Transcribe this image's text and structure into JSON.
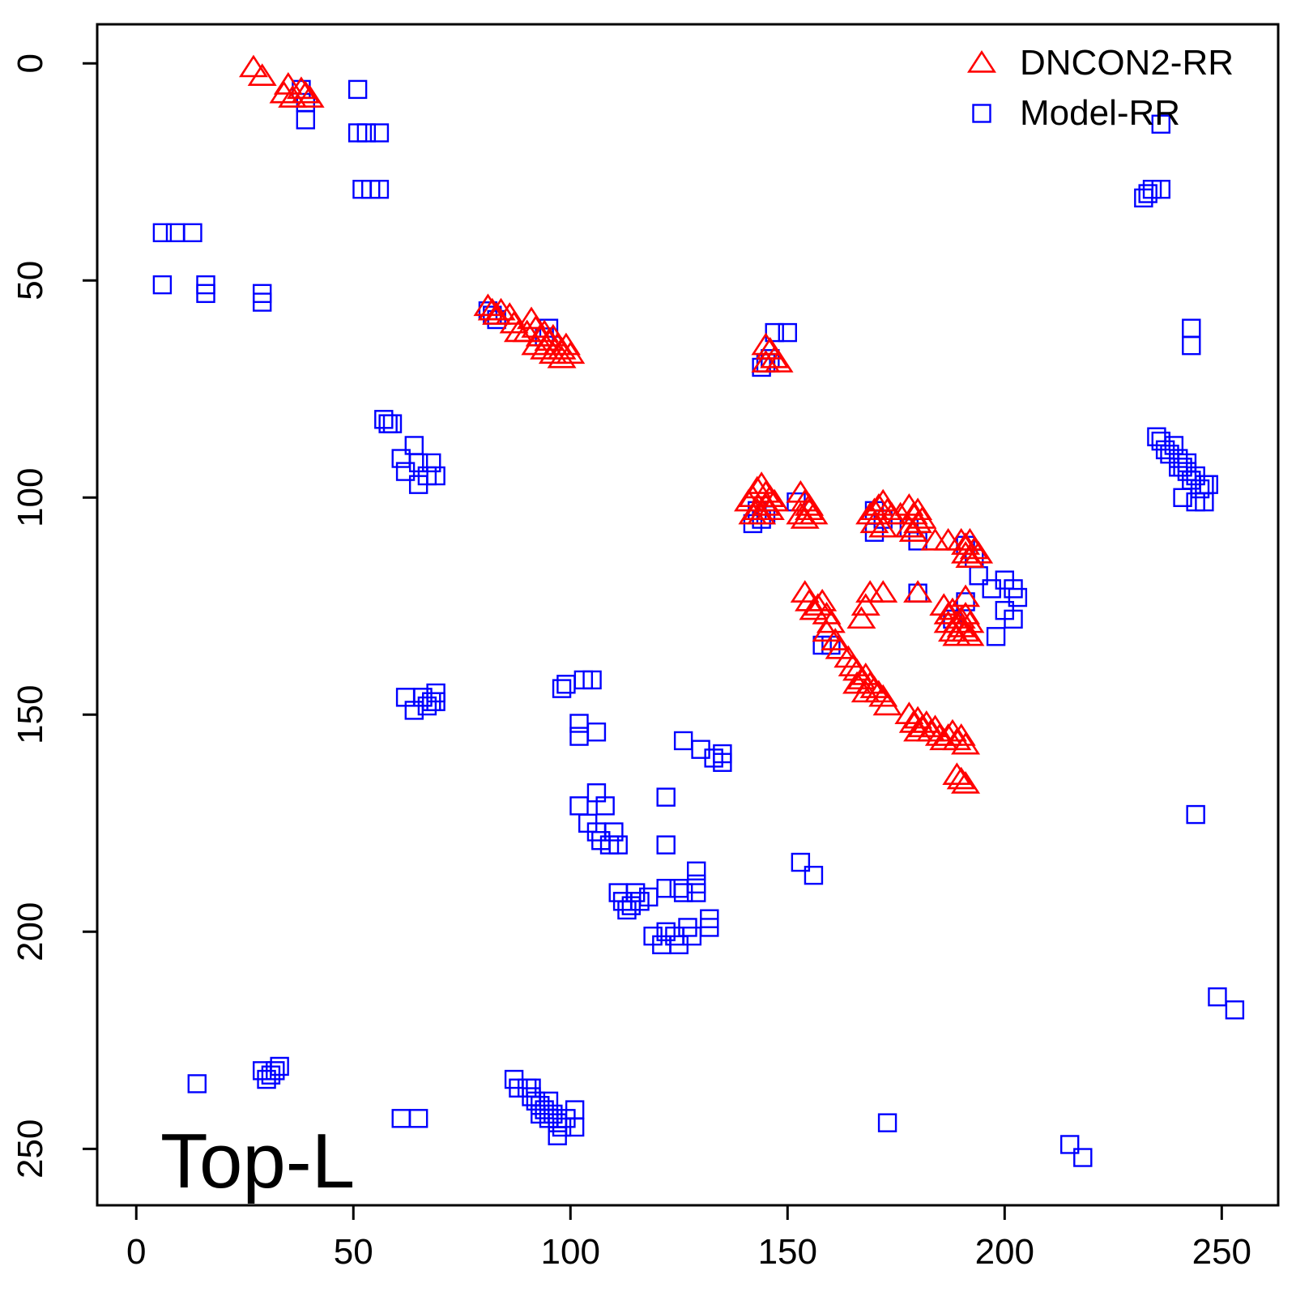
{
  "chart_data": {
    "type": "scatter",
    "title": "",
    "xlabel": "",
    "ylabel": "",
    "xlim": [
      -9,
      263
    ],
    "ylim": [
      263,
      -9
    ],
    "y_reversed": true,
    "grid": false,
    "legend_position": "top-right",
    "x_ticks": [
      0,
      50,
      100,
      150,
      200,
      250
    ],
    "y_ticks": [
      0,
      50,
      100,
      150,
      200,
      250
    ],
    "annotation": "Top-L",
    "series": [
      {
        "name": "DNCON2-RR",
        "marker": "triangle-open",
        "color": "#ff0000",
        "points": [
          [
            27,
            1
          ],
          [
            29,
            3
          ],
          [
            34,
            7
          ],
          [
            35,
            5
          ],
          [
            36,
            8
          ],
          [
            38,
            6
          ],
          [
            39,
            7
          ],
          [
            40,
            8
          ],
          [
            81,
            56
          ],
          [
            82,
            57
          ],
          [
            83,
            58
          ],
          [
            84,
            57
          ],
          [
            86,
            58
          ],
          [
            87,
            60
          ],
          [
            88,
            62
          ],
          [
            90,
            62
          ],
          [
            91,
            59
          ],
          [
            92,
            61
          ],
          [
            93,
            63
          ],
          [
            94,
            62
          ],
          [
            95,
            64
          ],
          [
            96,
            63
          ],
          [
            97,
            65
          ],
          [
            98,
            66
          ],
          [
            99,
            65
          ],
          [
            100,
            67
          ],
          [
            92,
            65
          ],
          [
            94,
            66
          ],
          [
            96,
            67
          ],
          [
            98,
            68
          ],
          [
            145,
            65
          ],
          [
            146,
            66
          ],
          [
            147,
            68
          ],
          [
            148,
            69
          ],
          [
            145,
            69
          ],
          [
            141,
            101
          ],
          [
            142,
            100
          ],
          [
            143,
            98
          ],
          [
            144,
            97
          ],
          [
            145,
            99
          ],
          [
            146,
            100
          ],
          [
            147,
            101
          ],
          [
            143,
            103
          ],
          [
            144,
            104
          ],
          [
            145,
            102
          ],
          [
            142,
            104
          ],
          [
            146,
            103
          ],
          [
            153,
            99
          ],
          [
            154,
            101
          ],
          [
            155,
            102
          ],
          [
            156,
            104
          ],
          [
            153,
            104
          ],
          [
            154,
            105
          ],
          [
            155,
            103
          ],
          [
            169,
            104
          ],
          [
            170,
            103
          ],
          [
            171,
            102
          ],
          [
            172,
            101
          ],
          [
            173,
            103
          ],
          [
            174,
            104
          ],
          [
            170,
            106
          ],
          [
            172,
            107
          ],
          [
            176,
            104
          ],
          [
            178,
            102
          ],
          [
            179,
            104
          ],
          [
            180,
            103
          ],
          [
            181,
            105
          ],
          [
            178,
            107
          ],
          [
            179,
            108
          ],
          [
            180,
            106
          ],
          [
            184,
            110
          ],
          [
            187,
            110
          ],
          [
            190,
            110
          ],
          [
            191,
            111
          ],
          [
            192,
            110
          ],
          [
            193,
            112
          ],
          [
            194,
            113
          ],
          [
            191,
            113
          ],
          [
            192,
            114
          ],
          [
            154,
            122
          ],
          [
            155,
            124
          ],
          [
            156,
            126
          ],
          [
            157,
            125
          ],
          [
            158,
            124
          ],
          [
            159,
            127
          ],
          [
            160,
            129
          ],
          [
            159,
            131
          ],
          [
            161,
            133
          ],
          [
            162,
            135
          ],
          [
            169,
            122
          ],
          [
            168,
            125
          ],
          [
            167,
            128
          ],
          [
            172,
            122
          ],
          [
            180,
            122
          ],
          [
            186,
            125
          ],
          [
            187,
            127
          ],
          [
            188,
            126
          ],
          [
            189,
            129
          ],
          [
            190,
            128
          ],
          [
            191,
            127
          ],
          [
            192,
            129
          ],
          [
            188,
            131
          ],
          [
            189,
            132
          ],
          [
            190,
            130
          ],
          [
            191,
            131
          ],
          [
            192,
            132
          ],
          [
            187,
            129
          ],
          [
            191,
            123
          ],
          [
            164,
            137
          ],
          [
            165,
            139
          ],
          [
            166,
            140
          ],
          [
            167,
            142
          ],
          [
            168,
            141
          ],
          [
            169,
            143
          ],
          [
            170,
            144
          ],
          [
            171,
            145
          ],
          [
            172,
            146
          ],
          [
            173,
            148
          ],
          [
            166,
            143
          ],
          [
            168,
            145
          ],
          [
            178,
            150
          ],
          [
            179,
            152
          ],
          [
            180,
            151
          ],
          [
            181,
            153
          ],
          [
            182,
            152
          ],
          [
            183,
            154
          ],
          [
            184,
            153
          ],
          [
            185,
            155
          ],
          [
            186,
            156
          ],
          [
            187,
            155
          ],
          [
            188,
            154
          ],
          [
            189,
            156
          ],
          [
            190,
            155
          ],
          [
            191,
            157
          ],
          [
            180,
            154
          ],
          [
            189,
            164
          ],
          [
            190,
            165
          ],
          [
            191,
            166
          ]
        ]
      },
      {
        "name": "Model-RR",
        "marker": "square-open",
        "color": "#0000ff",
        "points": [
          [
            38,
            6
          ],
          [
            39,
            9
          ],
          [
            39,
            13
          ],
          [
            51,
            6
          ],
          [
            51,
            16
          ],
          [
            53,
            16
          ],
          [
            56,
            16
          ],
          [
            52,
            29
          ],
          [
            54,
            29
          ],
          [
            56,
            29
          ],
          [
            6,
            39
          ],
          [
            9,
            39
          ],
          [
            13,
            39
          ],
          [
            6,
            51
          ],
          [
            16,
            51
          ],
          [
            16,
            53
          ],
          [
            29,
            53
          ],
          [
            29,
            55
          ],
          [
            81,
            57
          ],
          [
            82,
            58
          ],
          [
            83,
            59
          ],
          [
            95,
            61
          ],
          [
            94,
            63
          ],
          [
            57,
            82
          ],
          [
            58,
            83
          ],
          [
            59,
            83
          ],
          [
            61,
            91
          ],
          [
            62,
            94
          ],
          [
            64,
            88
          ],
          [
            65,
            92
          ],
          [
            65,
            97
          ],
          [
            67,
            95
          ],
          [
            68,
            92
          ],
          [
            69,
            95
          ],
          [
            147,
            62
          ],
          [
            150,
            62
          ],
          [
            145,
            69
          ],
          [
            146,
            68
          ],
          [
            144,
            70
          ],
          [
            143,
            103
          ],
          [
            144,
            105
          ],
          [
            145,
            104
          ],
          [
            142,
            106
          ],
          [
            152,
            101
          ],
          [
            170,
            103
          ],
          [
            172,
            105
          ],
          [
            170,
            108
          ],
          [
            178,
            107
          ],
          [
            180,
            110
          ],
          [
            191,
            111
          ],
          [
            193,
            114
          ],
          [
            194,
            118
          ],
          [
            197,
            121
          ],
          [
            200,
            119
          ],
          [
            202,
            121
          ],
          [
            203,
            123
          ],
          [
            200,
            126
          ],
          [
            202,
            128
          ],
          [
            198,
            132
          ],
          [
            191,
            124
          ],
          [
            188,
            128
          ],
          [
            180,
            122
          ],
          [
            158,
            134
          ],
          [
            160,
            134
          ],
          [
            62,
            146
          ],
          [
            64,
            149
          ],
          [
            66,
            146
          ],
          [
            67,
            148
          ],
          [
            68,
            147
          ],
          [
            69,
            145
          ],
          [
            69,
            147
          ],
          [
            98,
            144
          ],
          [
            99,
            143
          ],
          [
            103,
            142
          ],
          [
            105,
            142
          ],
          [
            102,
            152
          ],
          [
            102,
            155
          ],
          [
            106,
            154
          ],
          [
            126,
            156
          ],
          [
            130,
            158
          ],
          [
            133,
            160
          ],
          [
            135,
            159
          ],
          [
            135,
            161
          ],
          [
            102,
            171
          ],
          [
            106,
            168
          ],
          [
            108,
            171
          ],
          [
            104,
            175
          ],
          [
            106,
            177
          ],
          [
            110,
            177
          ],
          [
            107,
            179
          ],
          [
            109,
            180
          ],
          [
            111,
            180
          ],
          [
            122,
            169
          ],
          [
            122,
            180
          ],
          [
            153,
            184
          ],
          [
            156,
            187
          ],
          [
            111,
            191
          ],
          [
            112,
            193
          ],
          [
            113,
            195
          ],
          [
            114,
            194
          ],
          [
            116,
            193
          ],
          [
            118,
            192
          ],
          [
            115,
            191
          ],
          [
            122,
            190
          ],
          [
            125,
            190
          ],
          [
            126,
            191
          ],
          [
            129,
            186
          ],
          [
            129,
            189
          ],
          [
            129,
            191
          ],
          [
            119,
            201
          ],
          [
            121,
            203
          ],
          [
            122,
            200
          ],
          [
            124,
            201
          ],
          [
            125,
            203
          ],
          [
            127,
            199
          ],
          [
            128,
            201
          ],
          [
            132,
            197
          ],
          [
            132,
            199
          ],
          [
            236,
            14
          ],
          [
            232,
            31
          ],
          [
            233,
            30
          ],
          [
            234,
            29
          ],
          [
            236,
            29
          ],
          [
            243,
            61
          ],
          [
            243,
            65
          ],
          [
            235,
            86
          ],
          [
            236,
            87
          ],
          [
            237,
            89
          ],
          [
            238,
            90
          ],
          [
            239,
            88
          ],
          [
            240,
            91
          ],
          [
            241,
            93
          ],
          [
            242,
            94
          ],
          [
            243,
            96
          ],
          [
            244,
            95
          ],
          [
            245,
            98
          ],
          [
            246,
            97
          ],
          [
            247,
            97
          ],
          [
            241,
            100
          ],
          [
            244,
            101
          ],
          [
            246,
            101
          ],
          [
            240,
            93
          ],
          [
            242,
            92
          ],
          [
            244,
            173
          ],
          [
            249,
            215
          ],
          [
            253,
            218
          ],
          [
            14,
            235
          ],
          [
            29,
            232
          ],
          [
            30,
            234
          ],
          [
            31,
            233
          ],
          [
            32,
            232
          ],
          [
            33,
            231
          ],
          [
            61,
            243
          ],
          [
            65,
            243
          ],
          [
            87,
            234
          ],
          [
            88,
            236
          ],
          [
            90,
            236
          ],
          [
            91,
            238
          ],
          [
            92,
            239
          ],
          [
            93,
            240
          ],
          [
            94,
            241
          ],
          [
            95,
            243
          ],
          [
            96,
            242
          ],
          [
            97,
            244
          ],
          [
            98,
            245
          ],
          [
            99,
            243
          ],
          [
            101,
            241
          ],
          [
            101,
            245
          ],
          [
            97,
            247
          ],
          [
            91,
            236
          ],
          [
            93,
            242
          ],
          [
            95,
            239
          ],
          [
            173,
            244
          ],
          [
            215,
            249
          ],
          [
            218,
            252
          ]
        ]
      }
    ]
  }
}
